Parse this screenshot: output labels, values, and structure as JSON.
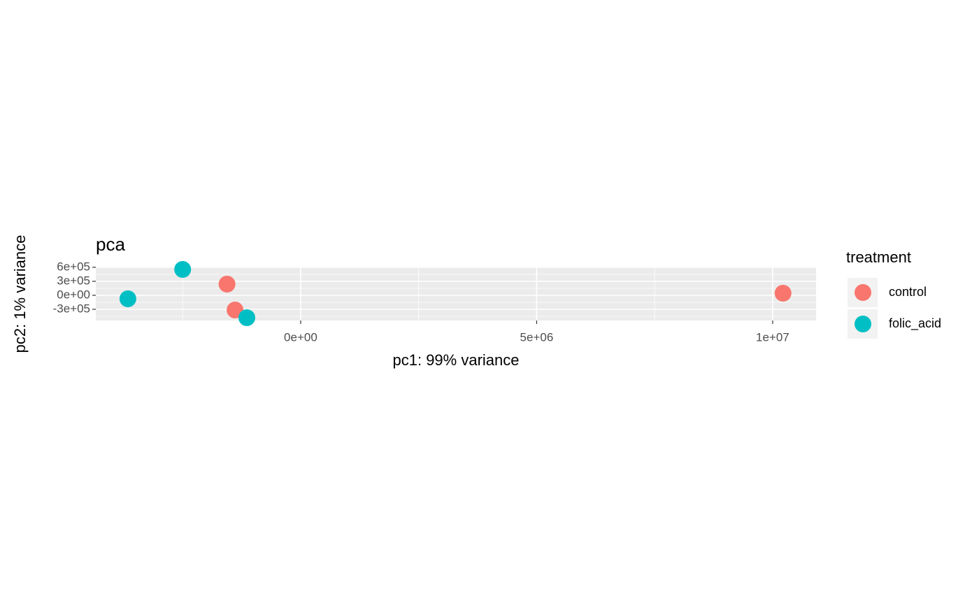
{
  "chart_data": {
    "type": "scatter",
    "title": "pca",
    "x_label": "pc1: 99% variance",
    "y_label": "pc2: 1% variance",
    "legend_title": "treatment",
    "legend_position": "right",
    "grid": true,
    "xlim": [
      -4340000,
      10920000
    ],
    "ylim": [
      -540000,
      615000
    ],
    "xticks": [
      {
        "value": 0,
        "label": "0e+00"
      },
      {
        "value": 5000000,
        "label": "5e+06"
      },
      {
        "value": 10000000,
        "label": "1e+07"
      }
    ],
    "yticks": [
      {
        "value": 600000,
        "label": "6e+05"
      },
      {
        "value": 300000,
        "label": "3e+05"
      },
      {
        "value": 0,
        "label": "0e+00"
      },
      {
        "value": -300000,
        "label": "-3e+05"
      }
    ],
    "series": [
      {
        "name": "control",
        "color": "#F8766D",
        "x": [
          -1560000,
          -1390000,
          10220000
        ],
        "y": [
          240000,
          -315000,
          45000
        ]
      },
      {
        "name": "folic_acid",
        "color": "#00BFC4",
        "x": [
          -2500000,
          -3660000,
          -1140000
        ],
        "y": [
          555000,
          -75000,
          -480000
        ]
      }
    ]
  }
}
